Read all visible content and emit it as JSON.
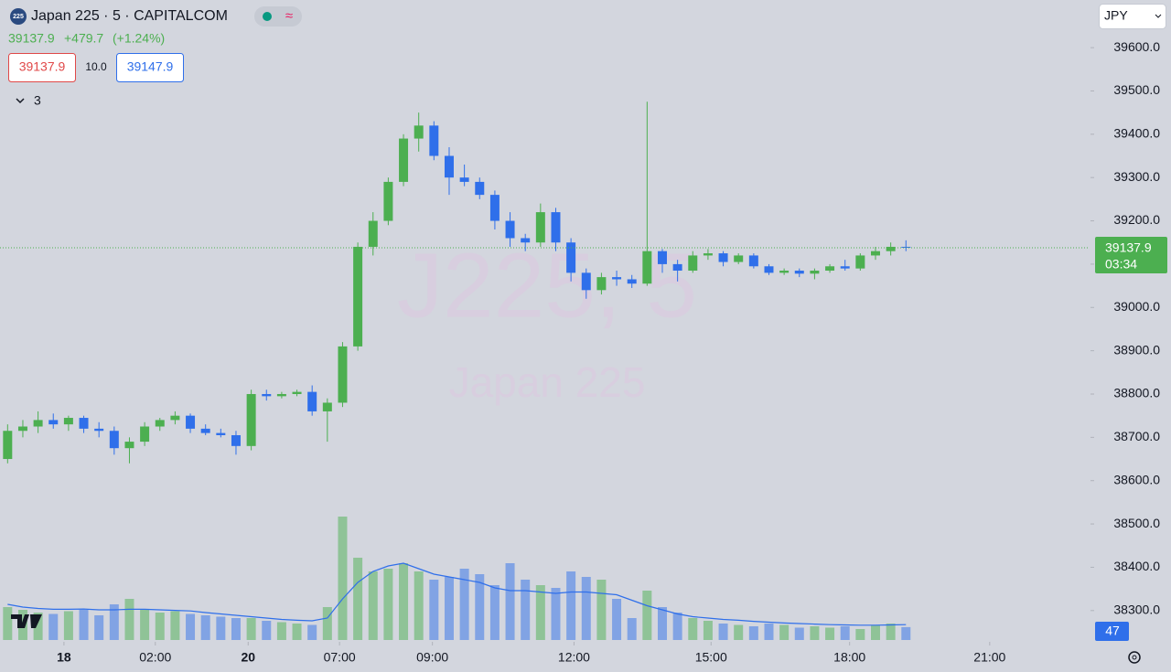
{
  "chart_data": {
    "type": "candlestick",
    "icon_text": "225",
    "title": "Japan 225 · 5 · CAPITALCOM",
    "last_price": 39137.9,
    "change": "+479.7",
    "change_pct": "(+1.24%)",
    "bid": 39137.9,
    "spread": "10.0",
    "ask": 39147.9,
    "indicator_count": 3,
    "watermark": "J225, 5",
    "watermark_subtitle": "Japan 225",
    "currency": "JPY",
    "countdown": "03:34",
    "up_color": "#4caf50",
    "down_color": "#2f6fea",
    "ylim": [
      38232,
      39710
    ],
    "yticks": [
      {
        "value": 38300,
        "label": "38300.0"
      },
      {
        "value": 38400,
        "label": "38400.0"
      },
      {
        "value": 38500,
        "label": "38500.0"
      },
      {
        "value": 38600,
        "label": "38600.0"
      },
      {
        "value": 38700,
        "label": "38700.0"
      },
      {
        "value": 38800,
        "label": "38800.0"
      },
      {
        "value": 38900,
        "label": "38900.0"
      },
      {
        "value": 39000,
        "label": "39000.0"
      },
      {
        "value": 39100,
        "label": "39100.0"
      },
      {
        "value": 39200,
        "label": "39200.0"
      },
      {
        "value": 39300,
        "label": "39300.0"
      },
      {
        "value": 39400,
        "label": "39400.0"
      },
      {
        "value": 39500,
        "label": "39500.0"
      },
      {
        "value": 39600,
        "label": "39600.0"
      }
    ],
    "xlim": [
      -0.5,
      71
    ],
    "xticks": [
      {
        "value": 3.7,
        "label": "18"
      },
      {
        "value": 9.7,
        "label": "02:00"
      },
      {
        "value": 15.8,
        "label": "20"
      },
      {
        "value": 21.8,
        "label": "07:00"
      },
      {
        "value": 27.9,
        "label": "09:00"
      },
      {
        "value": 37.2,
        "label": "12:00"
      },
      {
        "value": 46.2,
        "label": "15:00"
      },
      {
        "value": 55.3,
        "label": "18:00"
      },
      {
        "value": 64.5,
        "label": "21:00"
      }
    ],
    "open": [
      38650,
      38715,
      38725,
      38740,
      38730,
      38745,
      38720,
      38715,
      38675,
      38690,
      38725,
      38740,
      38750,
      38720,
      38710,
      38705,
      38680,
      38800,
      38795,
      38800,
      38805,
      38760,
      38780,
      38910,
      39140,
      39200,
      39290,
      39390,
      39420,
      39350,
      39300,
      39290,
      39260,
      39200,
      39160,
      39150,
      39220,
      39150,
      39080,
      39040,
      39070,
      39065,
      39055,
      39130,
      39100,
      39085,
      39120,
      39125,
      39105,
      39120,
      39095,
      39080,
      39085,
      39078,
      39085,
      39095,
      39090,
      39120,
      39130,
      39140
    ],
    "high": [
      38730,
      38740,
      38760,
      38755,
      38750,
      38750,
      38735,
      38725,
      38700,
      38735,
      38745,
      38760,
      38755,
      38730,
      38720,
      38715,
      38810,
      38810,
      38805,
      38810,
      38820,
      38790,
      38920,
      39150,
      39220,
      39300,
      39400,
      39450,
      39430,
      39370,
      39330,
      39300,
      39270,
      39220,
      39170,
      39240,
      39230,
      39160,
      39090,
      39080,
      39085,
      39075,
      39475,
      39135,
      39110,
      39130,
      39135,
      39130,
      39125,
      39125,
      39100,
      39090,
      39090,
      39090,
      39100,
      39110,
      39125,
      39140,
      39150,
      39155
    ],
    "low": [
      38640,
      38700,
      38710,
      38720,
      38715,
      38710,
      38700,
      38660,
      38640,
      38680,
      38715,
      38730,
      38710,
      38705,
      38700,
      38660,
      38670,
      38785,
      38790,
      38795,
      38750,
      38690,
      38770,
      38900,
      39120,
      39190,
      39280,
      39360,
      39340,
      39260,
      39280,
      39250,
      39180,
      39140,
      39130,
      39140,
      39130,
      39060,
      39020,
      39030,
      39050,
      39045,
      39050,
      39080,
      39060,
      39080,
      39110,
      39095,
      39100,
      39090,
      39075,
      39075,
      39070,
      39065,
      39080,
      39085,
      39085,
      39110,
      39120,
      39130
    ],
    "close": [
      38715,
      38725,
      38740,
      38730,
      38745,
      38720,
      38715,
      38675,
      38690,
      38725,
      38740,
      38750,
      38720,
      38710,
      38705,
      38680,
      38800,
      38795,
      38800,
      38805,
      38760,
      38780,
      38910,
      39140,
      39200,
      39290,
      39390,
      39420,
      39350,
      39300,
      39290,
      39260,
      39200,
      39160,
      39150,
      39220,
      39150,
      39080,
      39040,
      39070,
      39065,
      39055,
      39130,
      39100,
      39085,
      39120,
      39125,
      39105,
      39120,
      39095,
      39080,
      39085,
      39078,
      39085,
      39095,
      39090,
      39120,
      39130,
      39140,
      39137.9
    ],
    "volume": {
      "ylim": [
        0,
        600
      ],
      "color": "#2f6fea",
      "values": [
        120,
        110,
        100,
        95,
        105,
        110,
        90,
        130,
        150,
        110,
        100,
        105,
        95,
        90,
        85,
        80,
        80,
        70,
        65,
        60,
        55,
        120,
        450,
        300,
        250,
        260,
        280,
        250,
        220,
        230,
        260,
        240,
        200,
        280,
        220,
        200,
        190,
        250,
        230,
        220,
        150,
        80,
        180,
        120,
        100,
        80,
        70,
        60,
        55,
        50,
        60,
        55,
        45,
        50,
        45,
        50,
        40,
        55,
        60,
        47
      ],
      "ma": [
        130,
        120,
        115,
        112,
        112,
        113,
        110,
        110,
        112,
        112,
        110,
        108,
        106,
        100,
        95,
        90,
        85,
        80,
        75,
        72,
        70,
        80,
        150,
        210,
        250,
        270,
        280,
        260,
        240,
        230,
        220,
        210,
        190,
        180,
        180,
        175,
        170,
        175,
        175,
        170,
        165,
        145,
        125,
        110,
        95,
        85,
        80,
        75,
        72,
        68,
        65,
        62,
        60,
        58,
        56,
        55,
        54,
        54,
        55,
        56
      ]
    }
  }
}
